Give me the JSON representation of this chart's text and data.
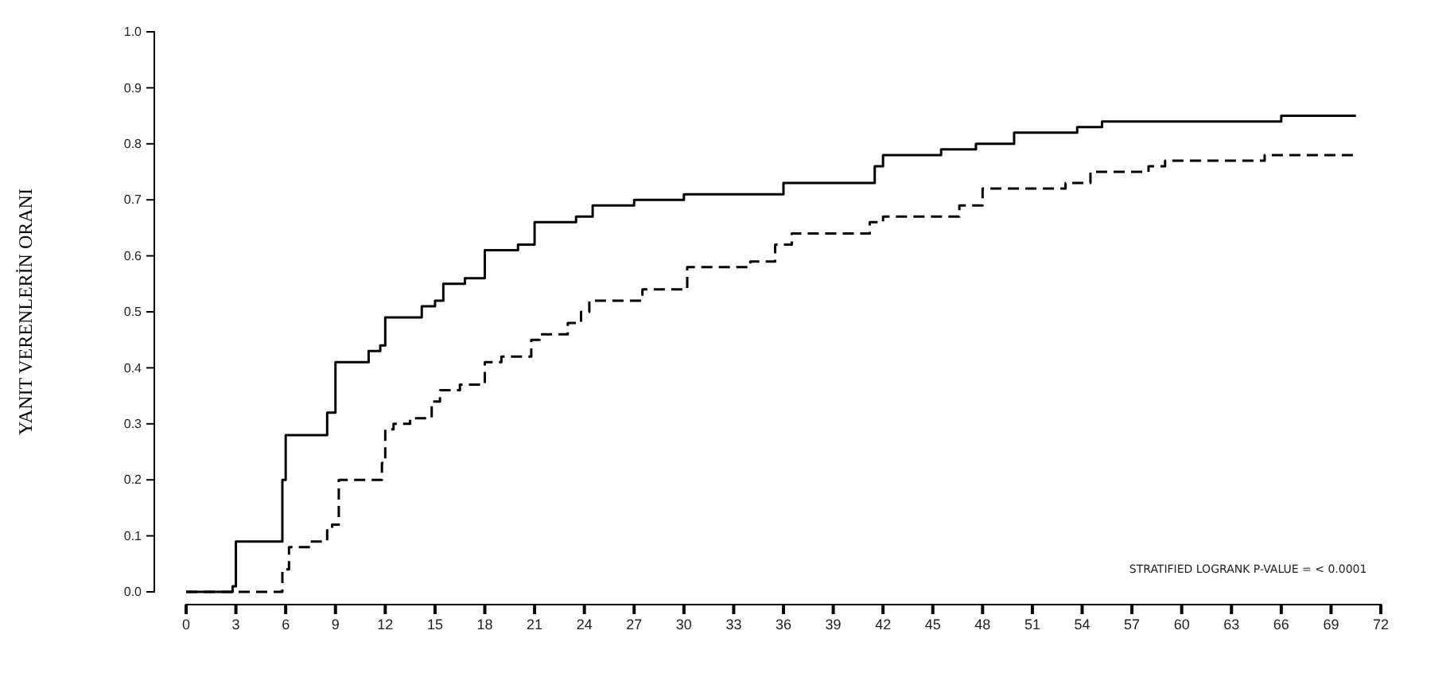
{
  "chart_data": {
    "type": "step",
    "ylabel": "YANIT VERENLERİN ORANI",
    "xlim": [
      0,
      72
    ],
    "xticks": [
      0,
      3,
      6,
      9,
      12,
      15,
      18,
      21,
      24,
      27,
      30,
      33,
      36,
      39,
      42,
      45,
      48,
      51,
      54,
      57,
      60,
      63,
      66,
      69,
      72
    ],
    "ylim": [
      0,
      1
    ],
    "yticks": [
      {
        "value": 0,
        "label": "0.0"
      },
      {
        "value": 0.1,
        "label": "0.1"
      },
      {
        "value": 0.2,
        "label": "0.2"
      },
      {
        "value": 0.3,
        "label": "0.3"
      },
      {
        "value": 0.4,
        "label": "0.4"
      },
      {
        "value": 0.5,
        "label": "0.5"
      },
      {
        "value": 0.6,
        "label": "0.6"
      },
      {
        "value": 0.7,
        "label": "0.7"
      },
      {
        "value": 0.8,
        "label": "0.8"
      },
      {
        "value": 0.9,
        "label": "0.9"
      },
      {
        "value": 1,
        "label": "1.0"
      }
    ],
    "grid": false,
    "marker": "none",
    "annotations": [
      "STRATIFIED LOGRANK P-VALUE = < 0.0001"
    ],
    "series": [
      {
        "color": "#000000",
        "line_style": "solid",
        "x": [
          0,
          2.8,
          3,
          5.6,
          5.8,
          6,
          8.3,
          8.5,
          9,
          11,
          11.7,
          12,
          14.2,
          15,
          15.5,
          16.8,
          18,
          20,
          21,
          23.5,
          24.5,
          27,
          30,
          33,
          36,
          41.5,
          42,
          45.5,
          47.6,
          49.9,
          53.7,
          55.2,
          66,
          70.5
        ],
        "values": [
          0,
          0.01,
          0.09,
          0.09,
          0.2,
          0.28,
          0.28,
          0.32,
          0.41,
          0.43,
          0.44,
          0.49,
          0.51,
          0.52,
          0.55,
          0.56,
          0.61,
          0.62,
          0.66,
          0.67,
          0.69,
          0.7,
          0.71,
          0.71,
          0.73,
          0.76,
          0.78,
          0.79,
          0.8,
          0.82,
          0.83,
          0.84,
          0.85,
          0.85
        ]
      },
      {
        "color": "#000000",
        "line_style": "dashed",
        "x": [
          0,
          5.5,
          5.8,
          6.2,
          7.5,
          8.5,
          8.8,
          9.2,
          11.5,
          11.8,
          12,
          12.5,
          13.5,
          14.8,
          15.3,
          16.5,
          18,
          19,
          20.8,
          21.3,
          23,
          23.8,
          24.3,
          27.5,
          30.2,
          34,
          35.5,
          36.5,
          41.2,
          42,
          46.6,
          48,
          53,
          54.5,
          58,
          59,
          65,
          70.5
        ],
        "values": [
          0,
          0,
          0.04,
          0.08,
          0.09,
          0.11,
          0.12,
          0.2,
          0.2,
          0.23,
          0.29,
          0.3,
          0.31,
          0.34,
          0.36,
          0.37,
          0.41,
          0.42,
          0.45,
          0.46,
          0.48,
          0.5,
          0.52,
          0.54,
          0.58,
          0.59,
          0.62,
          0.64,
          0.66,
          0.67,
          0.69,
          0.72,
          0.73,
          0.75,
          0.76,
          0.77,
          0.78,
          0.78
        ]
      }
    ]
  }
}
